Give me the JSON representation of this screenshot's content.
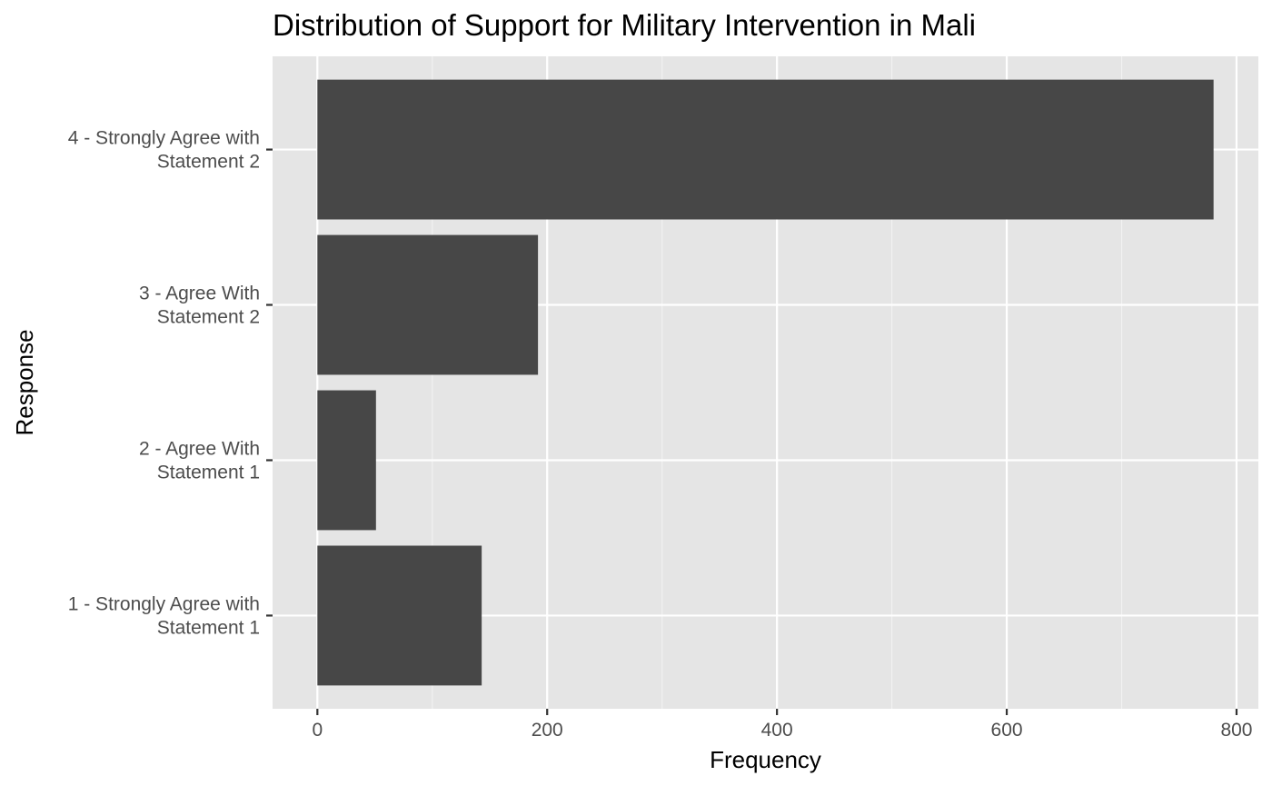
{
  "chart_data": {
    "type": "bar",
    "orientation": "horizontal",
    "title": "Distribution of Support for Military Intervention in Mali",
    "xlabel": "Frequency",
    "ylabel": "Response",
    "categories": [
      [
        "1 - Strongly Agree with",
        "Statement 1"
      ],
      [
        "2 - Agree With",
        "Statement 1"
      ],
      [
        "3 - Agree With",
        "Statement 2"
      ],
      [
        "4 - Strongly Agree with",
        "Statement 2"
      ]
    ],
    "values": [
      143,
      51,
      192,
      780
    ],
    "xlim": [
      -39,
      819
    ],
    "x_ticks": [
      0,
      200,
      400,
      600,
      800
    ],
    "x_tick_labels": [
      "0",
      "200",
      "400",
      "600",
      "800"
    ],
    "grid": true,
    "colors": {
      "bar": "#474747",
      "panel_background": "#e5e5e5",
      "grid_major": "#ffffff",
      "grid_minor": "#f2f2f2"
    }
  }
}
